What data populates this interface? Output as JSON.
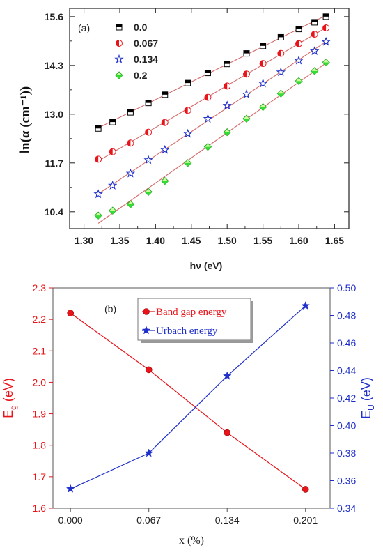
{
  "chart_data": [
    {
      "type": "scatter",
      "panel_label": "(a)",
      "xlabel": "hν (eV)",
      "ylabel": "ln(α (cm⁻¹))",
      "xlim": [
        1.28,
        1.67
      ],
      "ylim": [
        9.95,
        15.82
      ],
      "x_ticks": [
        "1.30",
        "1.35",
        "1.40",
        "1.45",
        "1.50",
        "1.55",
        "1.60",
        "1.65"
      ],
      "y_ticks": [
        "10.4",
        "11.7",
        "13.0",
        "14.3",
        "15.6"
      ],
      "x": [
        1.32,
        1.34,
        1.365,
        1.39,
        1.413,
        1.445,
        1.473,
        1.5,
        1.527,
        1.55,
        1.575,
        1.6,
        1.622,
        1.638
      ],
      "series": [
        {
          "name": "0.0",
          "marker": "square",
          "color": "#000000",
          "values": [
            12.62,
            12.79,
            13.05,
            13.3,
            13.52,
            13.83,
            14.1,
            14.34,
            14.62,
            14.82,
            15.05,
            15.27,
            15.45,
            15.6
          ]
        },
        {
          "name": "0.067",
          "marker": "circle",
          "color": "#e8141a",
          "values": [
            11.8,
            12.0,
            12.23,
            12.52,
            12.78,
            13.1,
            13.45,
            13.75,
            14.07,
            14.35,
            14.62,
            14.88,
            15.13,
            15.3
          ]
        },
        {
          "name": "0.134",
          "marker": "star",
          "color": "#1f2fc9",
          "values": [
            10.87,
            11.1,
            11.42,
            11.78,
            12.05,
            12.48,
            12.88,
            13.23,
            13.53,
            13.82,
            14.12,
            14.43,
            14.68,
            14.93
          ]
        },
        {
          "name": "0.2",
          "marker": "diamond",
          "color": "#33dd33",
          "values": [
            10.3,
            10.43,
            10.6,
            10.93,
            11.22,
            11.7,
            12.13,
            12.52,
            12.88,
            13.19,
            13.55,
            13.88,
            14.15,
            14.38
          ]
        }
      ]
    },
    {
      "type": "line",
      "panel_label": "(b)",
      "xlabel": "x (%)",
      "categories": [
        "0.000",
        "0.067",
        "0.134",
        "0.201"
      ],
      "x": [
        0.0,
        0.067,
        0.134,
        0.201
      ],
      "xlim": [
        -0.015,
        0.222
      ],
      "y_left": {
        "label": "Eg (eV)",
        "label_main": "E",
        "label_sub": "g",
        "label_unit": " (eV)",
        "ylim": [
          1.6,
          2.3
        ],
        "ticks": [
          "1.6",
          "1.7",
          "1.8",
          "1.9",
          "2.0",
          "2.1",
          "2.2",
          "2.3"
        ],
        "color": "#e8141a"
      },
      "y_right": {
        "label": "EU (eV)",
        "label_main": "E",
        "label_sub": "U",
        "label_unit": " (eV)",
        "ylim": [
          0.34,
          0.5
        ],
        "ticks": [
          "0.34",
          "0.36",
          "0.38",
          "0.40",
          "0.42",
          "0.44",
          "0.46",
          "0.48",
          "0.50"
        ],
        "color": "#1f2fc9"
      },
      "series": [
        {
          "name": "Band gap energy",
          "axis": "left",
          "marker": "circle",
          "color": "#e8141a",
          "values": [
            2.22,
            2.04,
            1.84,
            1.66
          ]
        },
        {
          "name": "Urbach energy",
          "axis": "right",
          "marker": "star",
          "color": "#1f2fc9",
          "values": [
            0.354,
            0.38,
            0.436,
            0.487
          ]
        }
      ]
    }
  ]
}
